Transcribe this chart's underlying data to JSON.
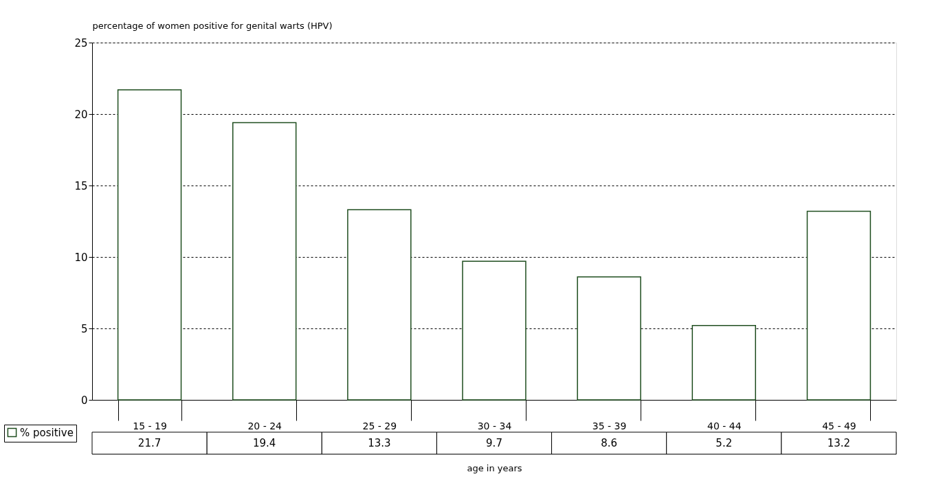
{
  "chart_data": {
    "type": "bar",
    "ylabel": "percentage of women positive for genital warts (HPV)",
    "xlabel": "age in years",
    "categories": [
      "15 - 19",
      "20 - 24",
      "25 - 29",
      "30 - 34",
      "35 - 39",
      "40 - 44",
      "45 - 49"
    ],
    "series": [
      {
        "name": "% positive",
        "color": "#1e4d1e",
        "values": [
          21.7,
          19.4,
          13.3,
          9.7,
          8.6,
          5.2,
          13.2
        ]
      }
    ],
    "ylim": [
      0,
      25
    ],
    "yticks": [
      0,
      5,
      10,
      15,
      20,
      25
    ],
    "grid": "y",
    "legend": "bottom left",
    "data_labels": true
  }
}
